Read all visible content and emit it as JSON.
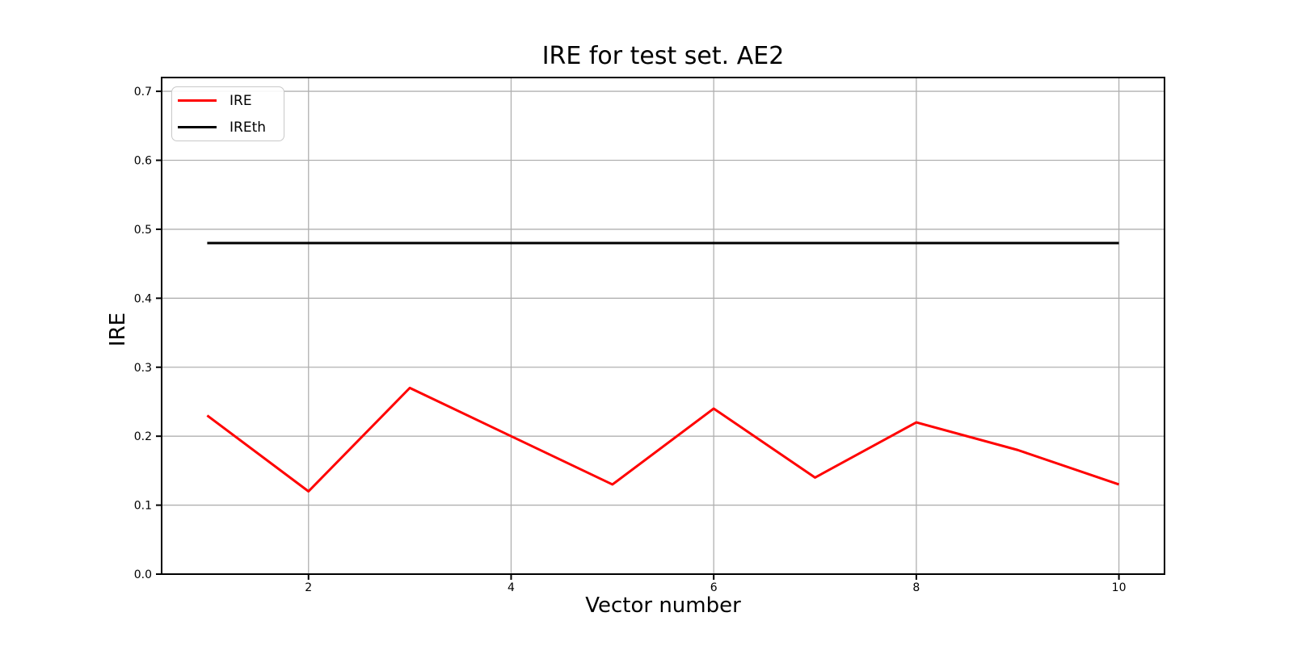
{
  "figure": {
    "background": "#ffffff"
  },
  "chart_data": {
    "type": "line",
    "title": "IRE for test set. AE2",
    "xlabel": "Vector number",
    "ylabel": "IRE",
    "x": [
      1,
      2,
      3,
      4,
      5,
      6,
      7,
      8,
      9,
      10
    ],
    "series": [
      {
        "name": "IRE",
        "color": "#ff0000",
        "values": [
          0.23,
          0.12,
          0.27,
          0.2,
          0.13,
          0.24,
          0.14,
          0.22,
          0.18,
          0.13
        ]
      },
      {
        "name": "IREth",
        "color": "#000000",
        "values": [
          0.48,
          0.48,
          0.48,
          0.48,
          0.48,
          0.48,
          0.48,
          0.48,
          0.48,
          0.48
        ]
      }
    ],
    "xlim": [
      0.55,
      10.45
    ],
    "ylim": [
      0,
      0.72
    ],
    "xticks": [
      2,
      4,
      6,
      8,
      10
    ],
    "yticks": [
      0.0,
      0.1,
      0.2,
      0.3,
      0.4,
      0.5,
      0.6,
      0.7
    ],
    "ytick_decimals": 1,
    "grid": true,
    "grid_color": "#b0b0b0",
    "axis_color": "#000000",
    "legend_position": "upper-left"
  }
}
